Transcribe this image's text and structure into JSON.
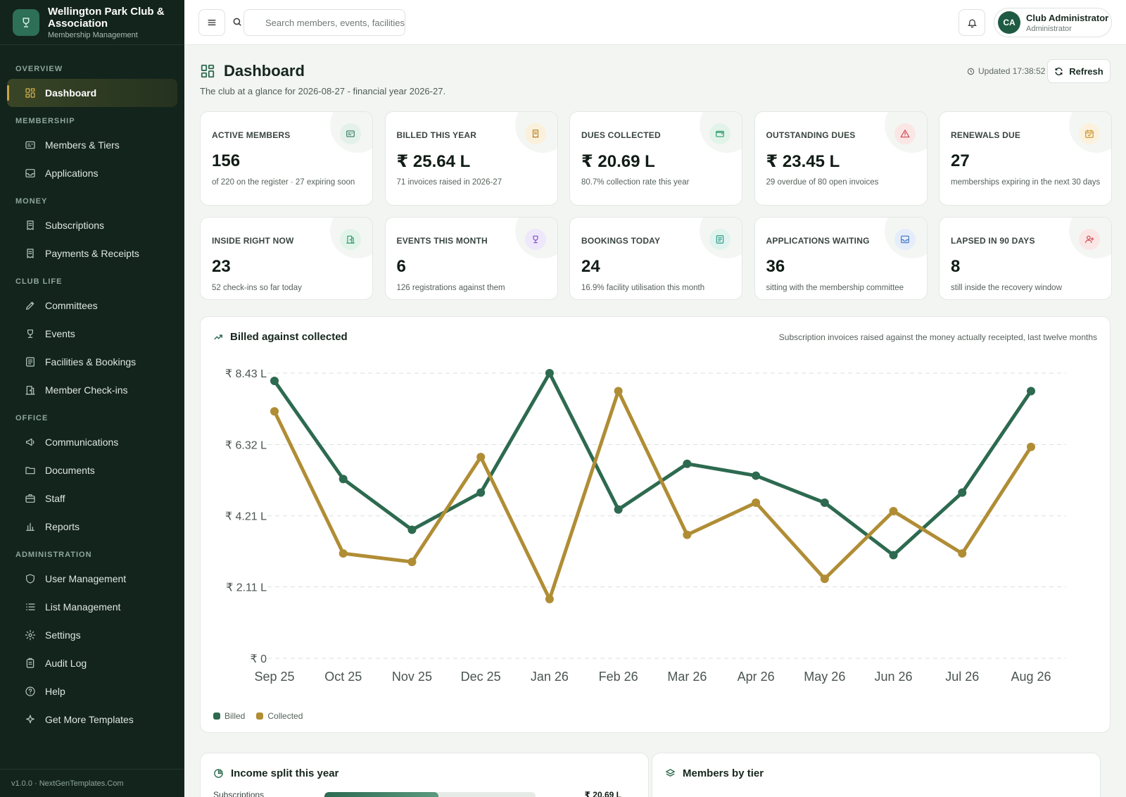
{
  "brand": {
    "name": "Wellington Park Club & Association",
    "subtitle": "Membership Management"
  },
  "sidebar": {
    "sections": [
      {
        "title": "OVERVIEW",
        "items": [
          {
            "label": "Dashboard",
            "icon": "grid-icon",
            "active": true
          }
        ]
      },
      {
        "title": "MEMBERSHIP",
        "items": [
          {
            "label": "Members & Tiers",
            "icon": "id-card-icon"
          },
          {
            "label": "Applications",
            "icon": "inbox-icon"
          }
        ]
      },
      {
        "title": "MONEY",
        "items": [
          {
            "label": "Subscriptions",
            "icon": "receipt-icon"
          },
          {
            "label": "Payments & Receipts",
            "icon": "receipt-icon"
          }
        ]
      },
      {
        "title": "CLUB LIFE",
        "items": [
          {
            "label": "Committees",
            "icon": "pencil-icon"
          },
          {
            "label": "Events",
            "icon": "trophy-icon"
          },
          {
            "label": "Facilities & Bookings",
            "icon": "book-icon"
          },
          {
            "label": "Member Check-ins",
            "icon": "door-icon"
          }
        ]
      },
      {
        "title": "OFFICE",
        "items": [
          {
            "label": "Communications",
            "icon": "megaphone-icon"
          },
          {
            "label": "Documents",
            "icon": "folder-icon"
          },
          {
            "label": "Staff",
            "icon": "briefcase-icon"
          },
          {
            "label": "Reports",
            "icon": "bar-chart-icon"
          }
        ]
      },
      {
        "title": "ADMINISTRATION",
        "items": [
          {
            "label": "User Management",
            "icon": "shield-icon"
          },
          {
            "label": "List Management",
            "icon": "list-icon"
          },
          {
            "label": "Settings",
            "icon": "gear-icon"
          },
          {
            "label": "Audit Log",
            "icon": "clipboard-icon"
          },
          {
            "label": "Help",
            "icon": "help-icon"
          },
          {
            "label": "Get More Templates",
            "icon": "sparkle-icon"
          }
        ]
      }
    ],
    "footer": "v1.0.0 · NextGenTemplates.Com"
  },
  "topbar": {
    "search_placeholder": "Search members, events, facilities",
    "user": {
      "initials": "CA",
      "name": "Club Administrator",
      "role": "Administrator"
    }
  },
  "page": {
    "title": "Dashboard",
    "subtitle": "The club at a glance for 2026-08-27 - financial year 2026-27.",
    "updated": "Updated 17:38:52",
    "refresh_label": "Refresh"
  },
  "stats": [
    {
      "label": "ACTIVE MEMBERS",
      "value": "156",
      "note": "of 220 on the register · 27 expiring soon",
      "icon": "id-card-icon",
      "color": "#2f7a5b",
      "tint": "#e4f1ea"
    },
    {
      "label": "BILLED THIS YEAR",
      "value": "₹ 25.64 L",
      "note": "71 invoices raised in 2026-27",
      "icon": "receipt-icon",
      "color": "#b8862b",
      "tint": "#fbf0dc"
    },
    {
      "label": "DUES COLLECTED",
      "value": "₹ 20.69 L",
      "note": "80.7% collection rate this year",
      "icon": "wallet-icon",
      "color": "#2f9a6a",
      "tint": "#e2f4ea"
    },
    {
      "label": "OUTSTANDING DUES",
      "value": "₹ 23.45 L",
      "note": "29 overdue of 80 open invoices",
      "icon": "warning-icon",
      "color": "#d0454b",
      "tint": "#fbe6e6"
    },
    {
      "label": "RENEWALS DUE",
      "value": "27",
      "note": "memberships expiring in the next 30 days",
      "icon": "calendar-icon",
      "color": "#c8962c",
      "tint": "#fcf1dc"
    },
    {
      "label": "INSIDE RIGHT NOW",
      "value": "23",
      "note": "52 check-ins so far today",
      "icon": "door-icon",
      "color": "#2f9a6a",
      "tint": "#e2f4ea"
    },
    {
      "label": "EVENTS THIS MONTH",
      "value": "6",
      "note": "126 registrations against them",
      "icon": "trophy-icon",
      "color": "#7a4fc9",
      "tint": "#efe7fb"
    },
    {
      "label": "BOOKINGS TODAY",
      "value": "24",
      "note": "16.9% facility utilisation this month",
      "icon": "book-icon",
      "color": "#2f9a8a",
      "tint": "#e0f3ef"
    },
    {
      "label": "APPLICATIONS WAITING",
      "value": "36",
      "note": "sitting with the membership committee",
      "icon": "inbox-icon",
      "color": "#3f72c4",
      "tint": "#e4edf9"
    },
    {
      "label": "LAPSED IN 90 DAYS",
      "value": "8",
      "note": "still inside the recovery window",
      "icon": "user-plus-icon",
      "color": "#d0454b",
      "tint": "#fbe6e6"
    }
  ],
  "chart": {
    "title": "Billed against collected",
    "description": "Subscription invoices raised against the money actually receipted, last twelve months"
  },
  "chart_data": {
    "type": "line",
    "title": "Billed against collected",
    "categories": [
      "Sep 25",
      "Oct 25",
      "Nov 25",
      "Dec 25",
      "Jan 26",
      "Feb 26",
      "Mar 26",
      "Apr 26",
      "May 26",
      "Jun 26",
      "Jul 26",
      "Aug 26"
    ],
    "y_ticks": [
      0,
      2.11,
      4.21,
      6.32,
      8.43
    ],
    "y_tick_labels": [
      "₹ 0",
      "₹ 2.11 L",
      "₹ 4.21 L",
      "₹ 6.32 L",
      "₹ 8.43 L"
    ],
    "ylim": [
      0,
      8.43
    ],
    "grid": true,
    "legend": "bottom-left",
    "series": [
      {
        "name": "Billed",
        "color": "#2d6a50",
        "values": [
          8.2,
          5.3,
          3.8,
          4.9,
          8.43,
          4.4,
          5.75,
          5.4,
          4.6,
          3.05,
          4.9,
          7.9
        ]
      },
      {
        "name": "Collected",
        "color": "#b08d35",
        "values": [
          7.3,
          3.1,
          2.85,
          5.95,
          1.75,
          7.9,
          3.65,
          4.6,
          2.35,
          4.35,
          3.1,
          6.25
        ]
      }
    ]
  },
  "bottom": {
    "income_title": "Income split this year",
    "income_row_label": "Subscriptions",
    "income_row_value": "₹ 20.69 L",
    "income_row_fraction": 0.54,
    "tier_title": "Members by tier"
  }
}
